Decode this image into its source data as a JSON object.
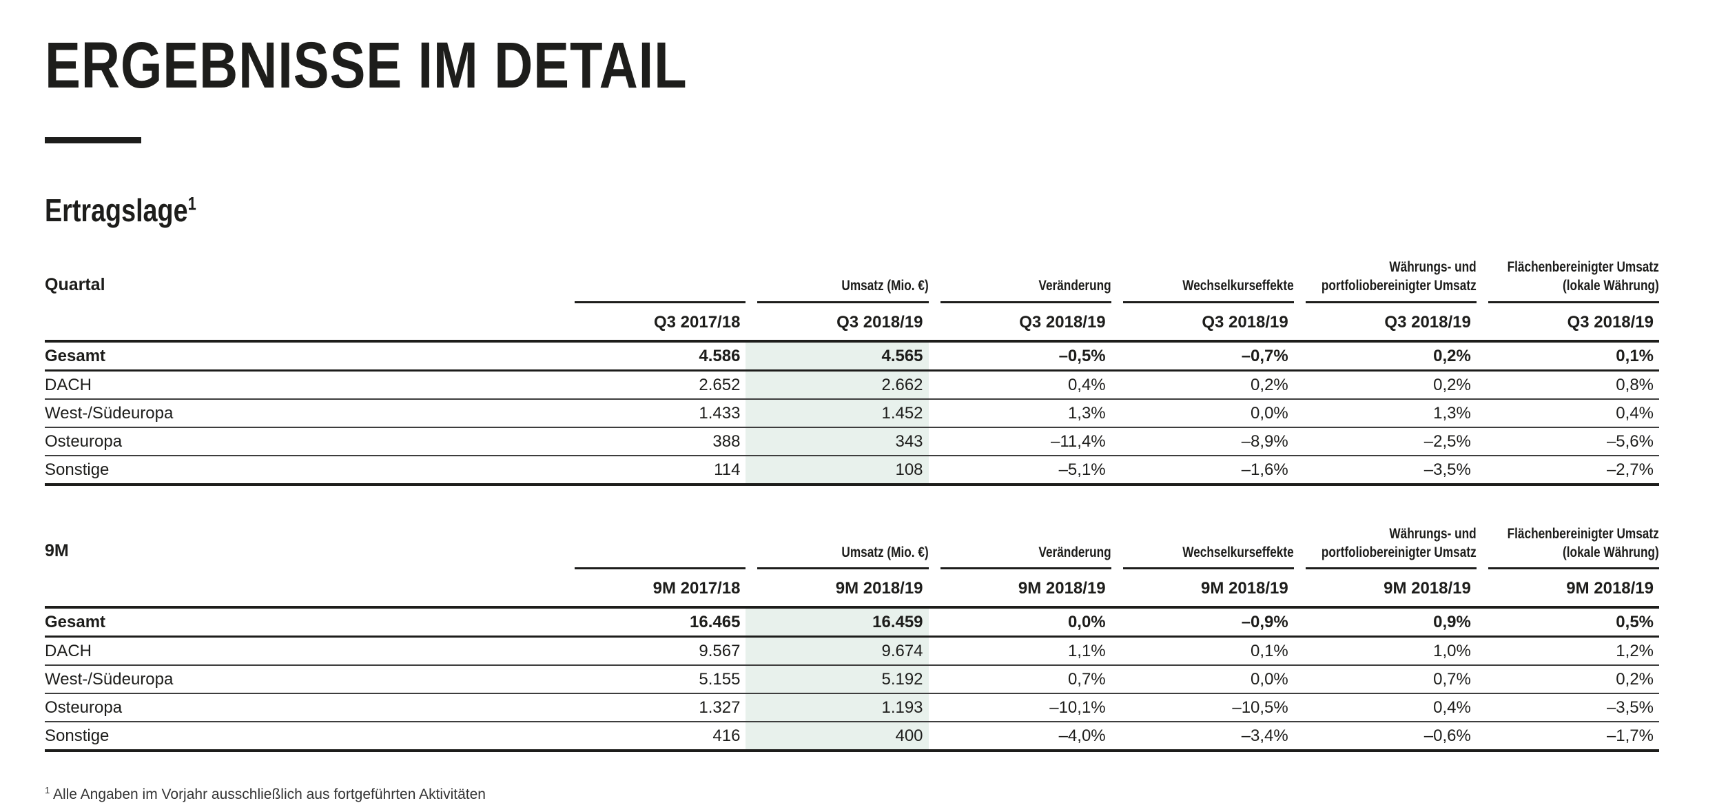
{
  "page": {
    "title": "ERGEBNISSE IM DETAIL",
    "section_title": "Ertragslage",
    "section_footnote_marker": "1",
    "footnote_marker": "1",
    "footnote_text": "Alle Angaben im Vorjahr ausschließlich aus fortgeführten Aktivitäten"
  },
  "colors": {
    "text": "#1d1d1b",
    "rule": "#1d1d1b",
    "highlight": "#e8f1ec"
  },
  "tables": [
    {
      "label": "Quartal",
      "group_headers": [
        "",
        "Umsatz (Mio. €)",
        "Veränderung",
        "Wechselkurseffekte",
        "Währungs- und portfoliobereinigter Umsatz",
        "Flächenbereinigter Umsatz (lokale Währung)"
      ],
      "period_headers": [
        "Q3 2017/18",
        "Q3 2018/19",
        "Q3 2018/19",
        "Q3 2018/19",
        "Q3 2018/19",
        "Q3 2018/19"
      ],
      "highlight_column_index": 1,
      "rows": [
        {
          "label": "Gesamt",
          "bold": true,
          "values": [
            "4.586",
            "4.565",
            "–0,5%",
            "–0,7%",
            "0,2%",
            "0,1%"
          ]
        },
        {
          "label": "DACH",
          "bold": false,
          "values": [
            "2.652",
            "2.662",
            "0,4%",
            "0,2%",
            "0,2%",
            "0,8%"
          ]
        },
        {
          "label": "West-/Südeuropa",
          "bold": false,
          "values": [
            "1.433",
            "1.452",
            "1,3%",
            "0,0%",
            "1,3%",
            "0,4%"
          ]
        },
        {
          "label": "Osteuropa",
          "bold": false,
          "values": [
            "388",
            "343",
            "–11,4%",
            "–8,9%",
            "–2,5%",
            "–5,6%"
          ]
        },
        {
          "label": "Sonstige",
          "bold": false,
          "values": [
            "114",
            "108",
            "–5,1%",
            "–1,6%",
            "–3,5%",
            "–2,7%"
          ]
        }
      ]
    },
    {
      "label": "9M",
      "group_headers": [
        "",
        "Umsatz (Mio. €)",
        "Veränderung",
        "Wechselkurseffekte",
        "Währungs- und portfoliobereinigter Umsatz",
        "Flächenbereinigter Umsatz (lokale Währung)"
      ],
      "period_headers": [
        "9M 2017/18",
        "9M 2018/19",
        "9M 2018/19",
        "9M 2018/19",
        "9M 2018/19",
        "9M 2018/19"
      ],
      "highlight_column_index": 1,
      "rows": [
        {
          "label": "Gesamt",
          "bold": true,
          "values": [
            "16.465",
            "16.459",
            "0,0%",
            "–0,9%",
            "0,9%",
            "0,5%"
          ]
        },
        {
          "label": "DACH",
          "bold": false,
          "values": [
            "9.567",
            "9.674",
            "1,1%",
            "0,1%",
            "1,0%",
            "1,2%"
          ]
        },
        {
          "label": "West-/Südeuropa",
          "bold": false,
          "values": [
            "5.155",
            "5.192",
            "0,7%",
            "0,0%",
            "0,7%",
            "0,2%"
          ]
        },
        {
          "label": "Osteuropa",
          "bold": false,
          "values": [
            "1.327",
            "1.193",
            "–10,1%",
            "–10,5%",
            "0,4%",
            "–3,5%"
          ]
        },
        {
          "label": "Sonstige",
          "bold": false,
          "values": [
            "416",
            "400",
            "–4,0%",
            "–3,4%",
            "–0,6%",
            "–1,7%"
          ]
        }
      ]
    }
  ]
}
